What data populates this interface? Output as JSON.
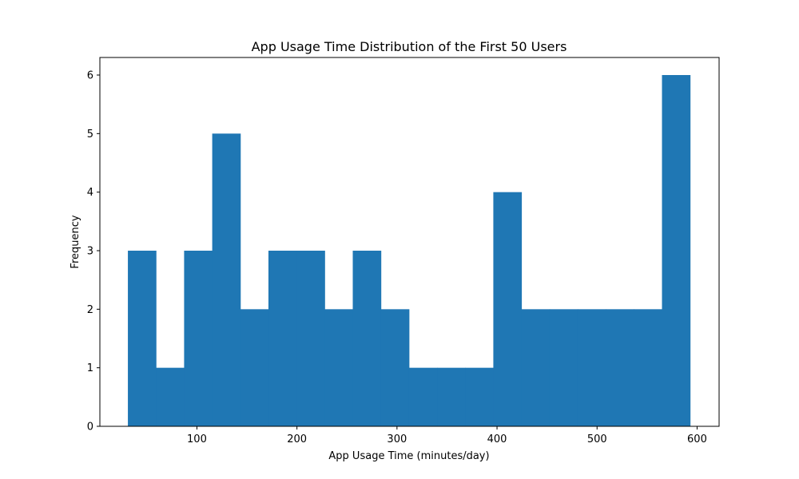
{
  "chart_data": {
    "type": "bar",
    "title": "App Usage Time Distribution of the First 50 Users",
    "xlabel": "App Usage Time (minutes/day)",
    "ylabel": "Frequency",
    "xlim": [
      3,
      622
    ],
    "ylim": [
      0,
      6.3
    ],
    "xticks": [
      100,
      200,
      300,
      400,
      500,
      600
    ],
    "xtick_labels": [
      "100",
      "200",
      "300",
      "400",
      "500",
      "600"
    ],
    "yticks": [
      0,
      1,
      2,
      3,
      4,
      5,
      6
    ],
    "ytick_labels": [
      "0",
      "1",
      "2",
      "3",
      "4",
      "5",
      "6"
    ],
    "bin_range": [
      31,
      593
    ],
    "bins": [
      {
        "start": 31.0,
        "end": 59.1,
        "value": 3
      },
      {
        "start": 59.1,
        "end": 87.2,
        "value": 1
      },
      {
        "start": 87.2,
        "end": 115.3,
        "value": 3
      },
      {
        "start": 115.3,
        "end": 143.4,
        "value": 5
      },
      {
        "start": 143.4,
        "end": 171.5,
        "value": 2
      },
      {
        "start": 171.5,
        "end": 199.6,
        "value": 3
      },
      {
        "start": 199.6,
        "end": 227.7,
        "value": 3
      },
      {
        "start": 227.7,
        "end": 255.8,
        "value": 2
      },
      {
        "start": 255.8,
        "end": 283.9,
        "value": 3
      },
      {
        "start": 283.9,
        "end": 312.0,
        "value": 2
      },
      {
        "start": 312.0,
        "end": 340.1,
        "value": 1
      },
      {
        "start": 340.1,
        "end": 368.2,
        "value": 1
      },
      {
        "start": 368.2,
        "end": 396.3,
        "value": 1
      },
      {
        "start": 396.3,
        "end": 424.4,
        "value": 4
      },
      {
        "start": 424.4,
        "end": 452.5,
        "value": 2
      },
      {
        "start": 452.5,
        "end": 480.6,
        "value": 2
      },
      {
        "start": 480.6,
        "end": 508.7,
        "value": 2
      },
      {
        "start": 508.7,
        "end": 536.8,
        "value": 2
      },
      {
        "start": 536.8,
        "end": 564.9,
        "value": 2
      },
      {
        "start": 564.9,
        "end": 593.0,
        "value": 6
      }
    ],
    "bar_color": "#1f77b4",
    "grid": false,
    "legend": "none"
  }
}
